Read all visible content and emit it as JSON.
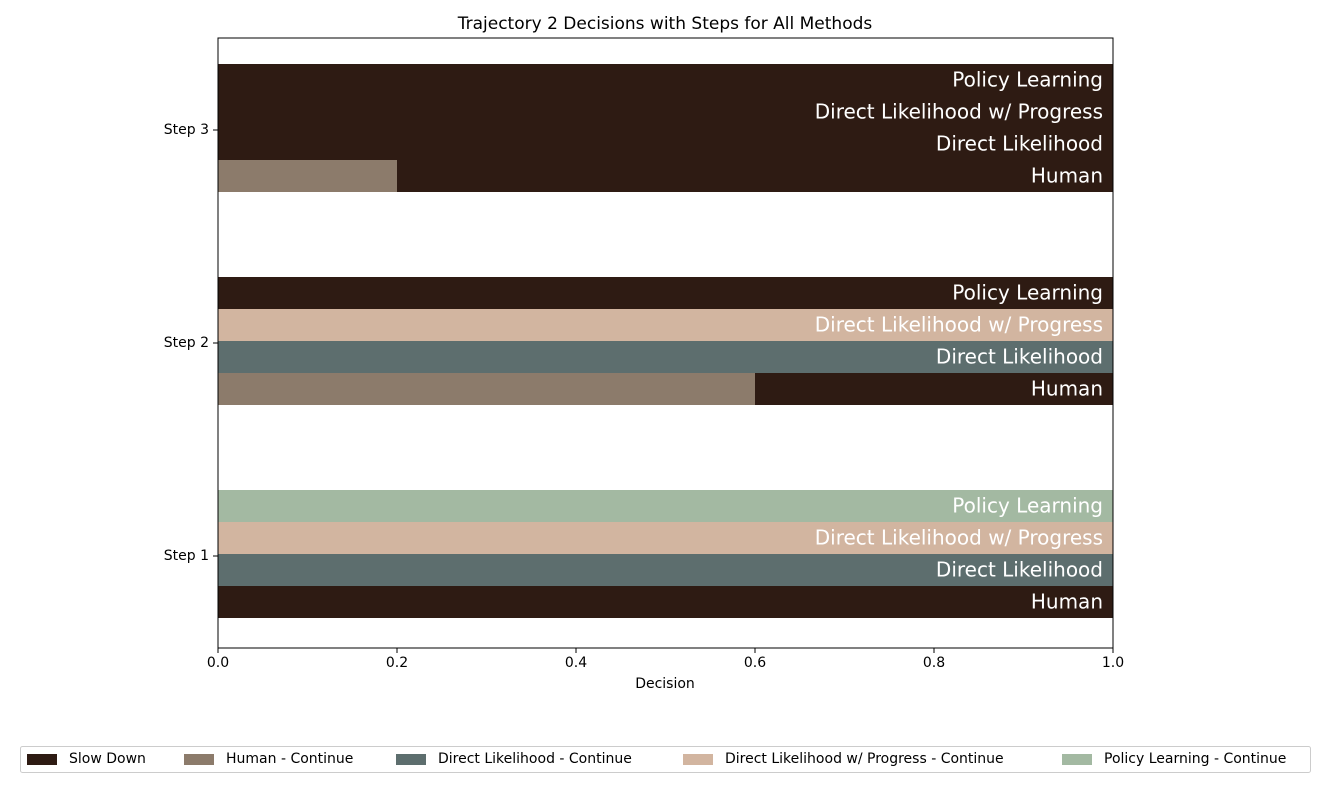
{
  "chart_data": {
    "type": "bar",
    "orientation": "horizontal",
    "title": "Trajectory 2 Decisions with Steps for All Methods",
    "xlabel": "Decision",
    "categories": [
      "Step 1",
      "Step 2",
      "Step 3"
    ],
    "slow_down": {
      "name": "Slow Down",
      "color": "#2e1b13"
    },
    "methods": [
      {
        "label": "Human",
        "legend": "Human - Continue",
        "color": "#8c7b6b",
        "continue": [
          0,
          0.6,
          0.2
        ],
        "slow_down": [
          1,
          0.4,
          0.8
        ]
      },
      {
        "label": "Direct Likelihood",
        "legend": "Direct Likelihood - Continue",
        "color": "#5d6e6e",
        "continue": [
          1,
          1,
          0
        ],
        "slow_down": [
          0,
          0,
          1
        ]
      },
      {
        "label": "Direct Likelihood w/ Progress",
        "legend": "Direct Likelihood w/ Progress - Continue",
        "color": "#d2b5a0",
        "continue": [
          1,
          1,
          0
        ],
        "slow_down": [
          0,
          0,
          1
        ]
      },
      {
        "label": "Policy Learning",
        "legend": "Policy Learning - Continue",
        "color": "#a3b9a2",
        "continue": [
          1,
          0,
          0
        ],
        "slow_down": [
          0,
          1,
          1
        ]
      }
    ],
    "xlim": [
      0,
      1
    ],
    "xticks": [
      {
        "value": 0,
        "label": "0.0"
      },
      0.2,
      0.4,
      0.6,
      0.8,
      {
        "value": 1,
        "label": "1.0"
      }
    ]
  }
}
